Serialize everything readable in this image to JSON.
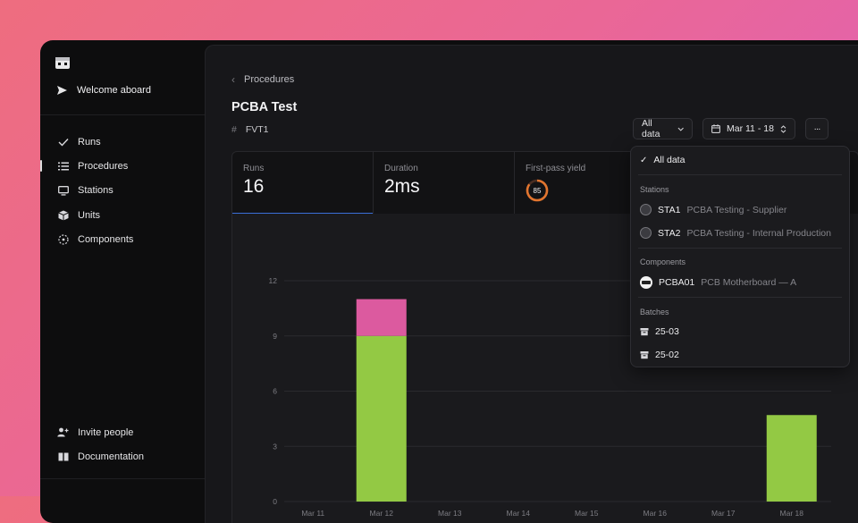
{
  "sidebar": {
    "welcome": "Welcome aboard",
    "items": [
      {
        "label": "Runs",
        "icon": "check-icon"
      },
      {
        "label": "Procedures",
        "icon": "list-icon"
      },
      {
        "label": "Stations",
        "icon": "monitor-icon"
      },
      {
        "label": "Units",
        "icon": "cube-icon"
      },
      {
        "label": "Components",
        "icon": "component-icon"
      }
    ],
    "bottom": [
      {
        "label": "Invite people",
        "icon": "add-user-icon"
      },
      {
        "label": "Documentation",
        "icon": "book-icon"
      }
    ]
  },
  "breadcrumb": {
    "parent": "Procedures"
  },
  "page": {
    "title": "PCBA Test",
    "code": "FVT1"
  },
  "toolbar": {
    "filter_label": "All data",
    "date_range": "Mar 11 - 18",
    "more": "···"
  },
  "stats": [
    {
      "label": "Runs",
      "value": "16"
    },
    {
      "label": "Duration",
      "value": "2ms"
    },
    {
      "label": "First-pass yield",
      "value": "85"
    }
  ],
  "dropdown": {
    "all_label": "All data",
    "stations_header": "Stations",
    "stations": [
      {
        "code": "STA1",
        "name": "PCBA Testing - Supplier"
      },
      {
        "code": "STA2",
        "name": "PCBA Testing - Internal Production"
      }
    ],
    "components_header": "Components",
    "components": [
      {
        "code": "PCBA01",
        "name": "PCB Motherboard — A"
      }
    ],
    "batches_header": "Batches",
    "batches": [
      "25-03",
      "25-02"
    ]
  },
  "colors": {
    "pass": "#93c944",
    "fail": "#dc5a9f",
    "accent": "#3b6fd8",
    "yield_ring": "#e2752f"
  },
  "chart_data": {
    "type": "bar",
    "categories": [
      "Mar 11",
      "Mar 12",
      "Mar 13",
      "Mar 14",
      "Mar 15",
      "Mar 16",
      "Mar 17",
      "Mar 18"
    ],
    "series": [
      {
        "values": [
          0,
          9,
          0,
          0,
          0,
          0,
          0,
          4.7
        ]
      },
      {
        "values": [
          0,
          2,
          0,
          0,
          0,
          0,
          0,
          0
        ]
      }
    ],
    "yticks": [
      0,
      3,
      6,
      9,
      12
    ],
    "ylim": [
      0,
      12
    ],
    "stacked": true,
    "grid": true
  }
}
